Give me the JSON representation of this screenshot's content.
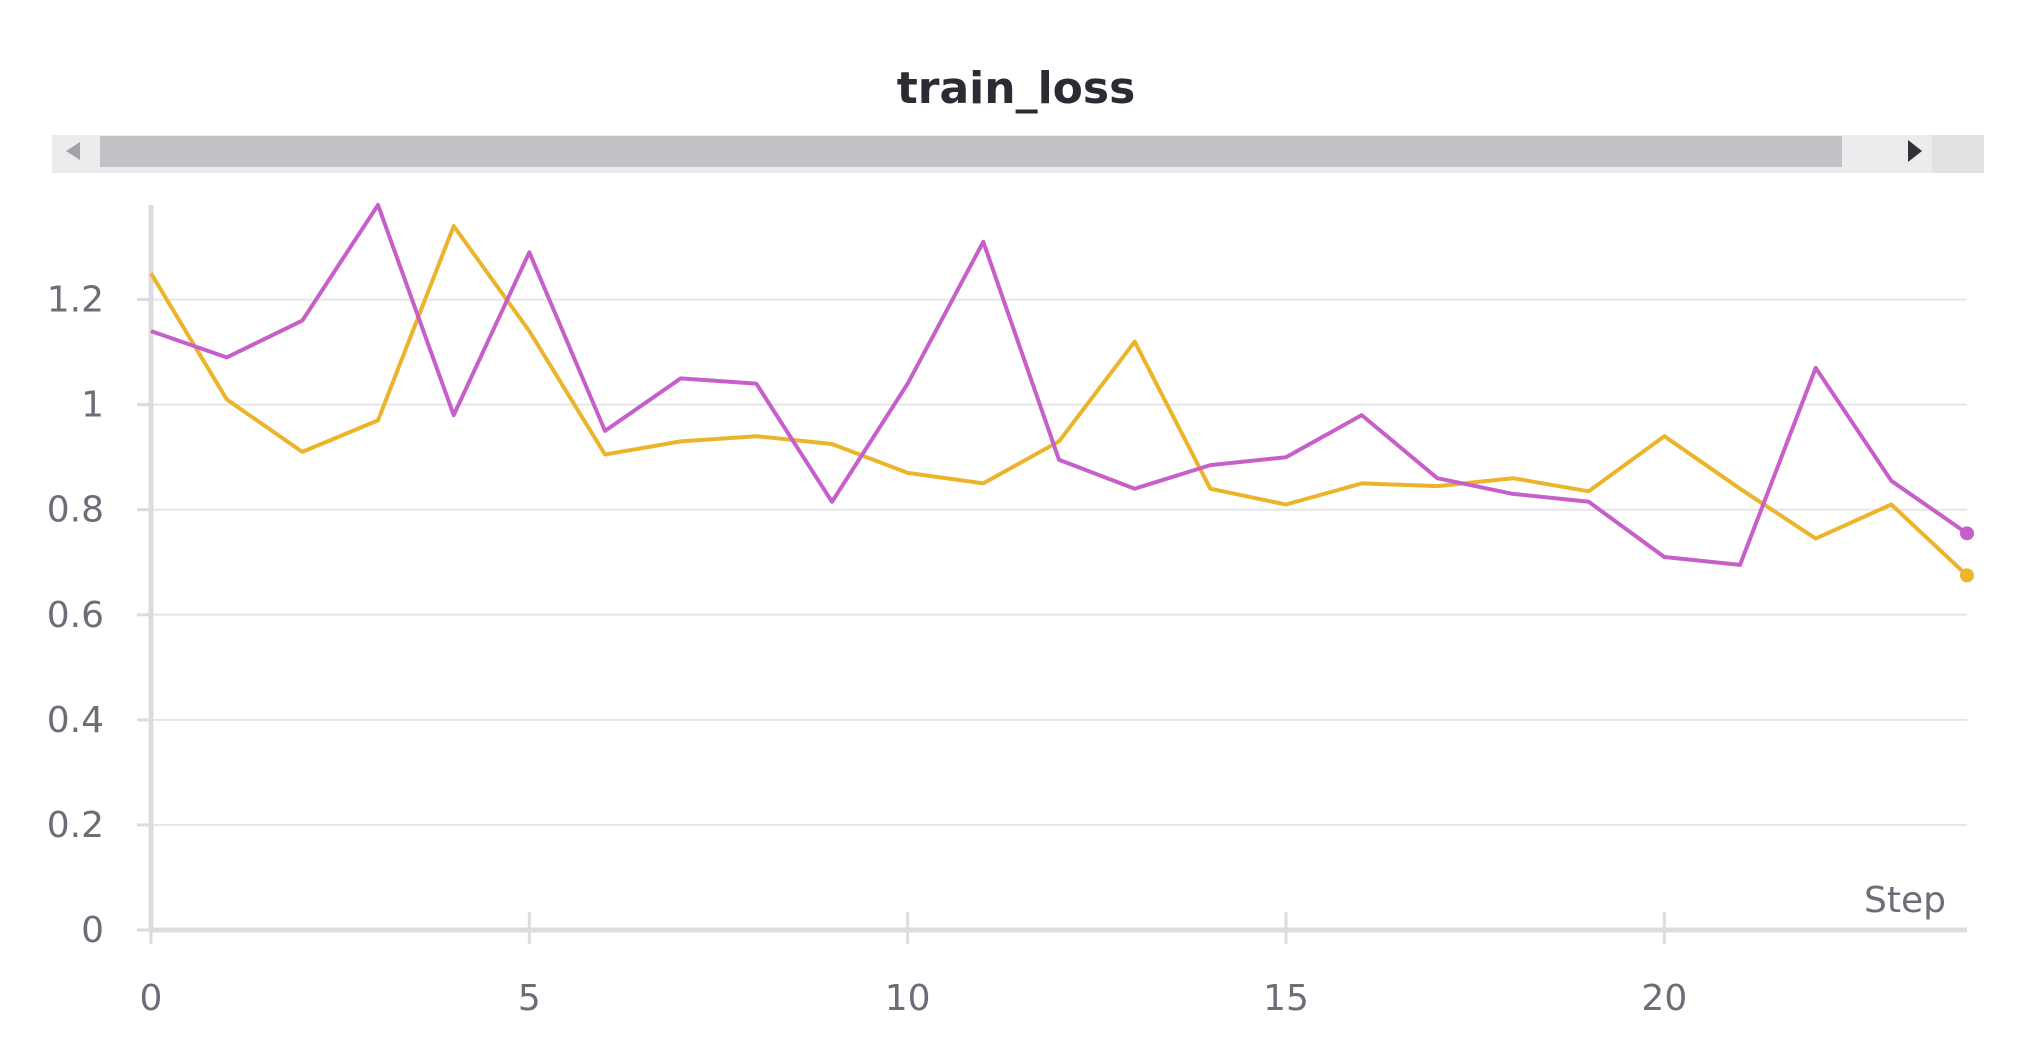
{
  "chart_data": {
    "type": "line",
    "title": "train_loss",
    "xlabel": "Step",
    "ylabel": "",
    "xlim": [
      0,
      24
    ],
    "ylim": [
      0,
      1.38
    ],
    "x_ticks": [
      0,
      5,
      10,
      15,
      20
    ],
    "y_ticks": [
      0,
      0.2,
      0.4,
      0.6,
      0.8,
      1,
      1.2
    ],
    "x_tick_labels": [
      "0",
      "5",
      "10",
      "15",
      "20"
    ],
    "y_tick_labels": [
      "0",
      "0.2",
      "0.4",
      "0.6",
      "0.8",
      "1",
      "1.2"
    ],
    "grid": true,
    "legend": "none",
    "x": [
      0,
      1,
      2,
      3,
      4,
      5,
      6,
      7,
      8,
      9,
      10,
      11,
      12,
      13,
      14,
      15,
      16,
      17,
      18,
      19,
      20,
      21,
      22,
      23,
      24
    ],
    "series": [
      {
        "color": "#ebb42a",
        "values": [
          1.25,
          1.01,
          0.91,
          0.97,
          1.34,
          1.14,
          0.905,
          0.93,
          0.94,
          0.925,
          0.87,
          0.85,
          0.93,
          1.12,
          0.84,
          0.81,
          0.85,
          0.845,
          0.86,
          0.835,
          0.94,
          0.84,
          0.745,
          0.81,
          0.675
        ]
      },
      {
        "color": "#c75fc9",
        "values": [
          1.14,
          1.09,
          1.16,
          1.38,
          0.98,
          1.29,
          0.95,
          1.05,
          1.04,
          0.815,
          1.04,
          1.31,
          0.895,
          0.84,
          0.885,
          0.9,
          0.98,
          0.86,
          0.83,
          0.815,
          0.71,
          0.695,
          1.07,
          0.855,
          0.755
        ]
      }
    ]
  },
  "scrollbar": {
    "left_arrow": "◀",
    "right_arrow": "▶"
  },
  "colors": {
    "grid": "#e6e6e9",
    "axis": "#dcdce0",
    "scroll_track": "#ececef",
    "scroll_thumb": "#c2c2c6"
  }
}
